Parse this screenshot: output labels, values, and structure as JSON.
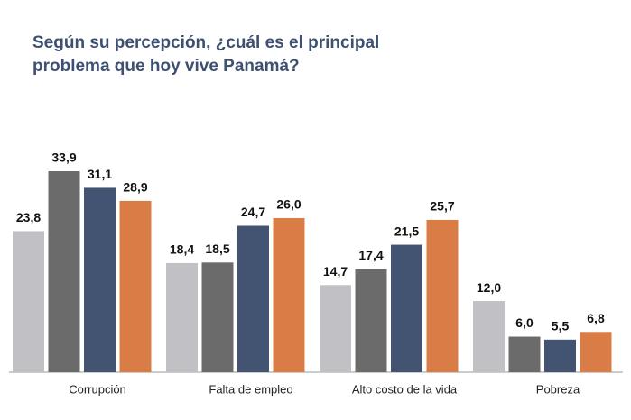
{
  "chart_data": {
    "type": "bar",
    "title": [
      "Según su percepción, ¿cuál es el principal",
      "problema que hoy vive Panamá?"
    ],
    "categories": [
      "Corrupción",
      "Falta de empleo",
      "Alto costo de la vida",
      "Pobreza"
    ],
    "series": [
      {
        "color": "#c1c1c5",
        "values": [
          23.8,
          18.4,
          14.7,
          12.0
        ],
        "value_labels": [
          "23,8",
          "18,4",
          "14,7",
          "12,0"
        ]
      },
      {
        "color": "#6b6b6b",
        "values": [
          33.9,
          18.5,
          17.4,
          6.0
        ],
        "value_labels": [
          "33,9",
          "18,5",
          "17,4",
          "6,0"
        ]
      },
      {
        "color": "#435473",
        "values": [
          31.1,
          24.7,
          21.5,
          5.5
        ],
        "value_labels": [
          "31,1",
          "24,7",
          "21,5",
          "5,5"
        ]
      },
      {
        "color": "#d97c45",
        "values": [
          28.9,
          26.0,
          25.7,
          6.8
        ],
        "value_labels": [
          "28,9",
          "26,0",
          "25,7",
          "6,8"
        ]
      }
    ]
  }
}
